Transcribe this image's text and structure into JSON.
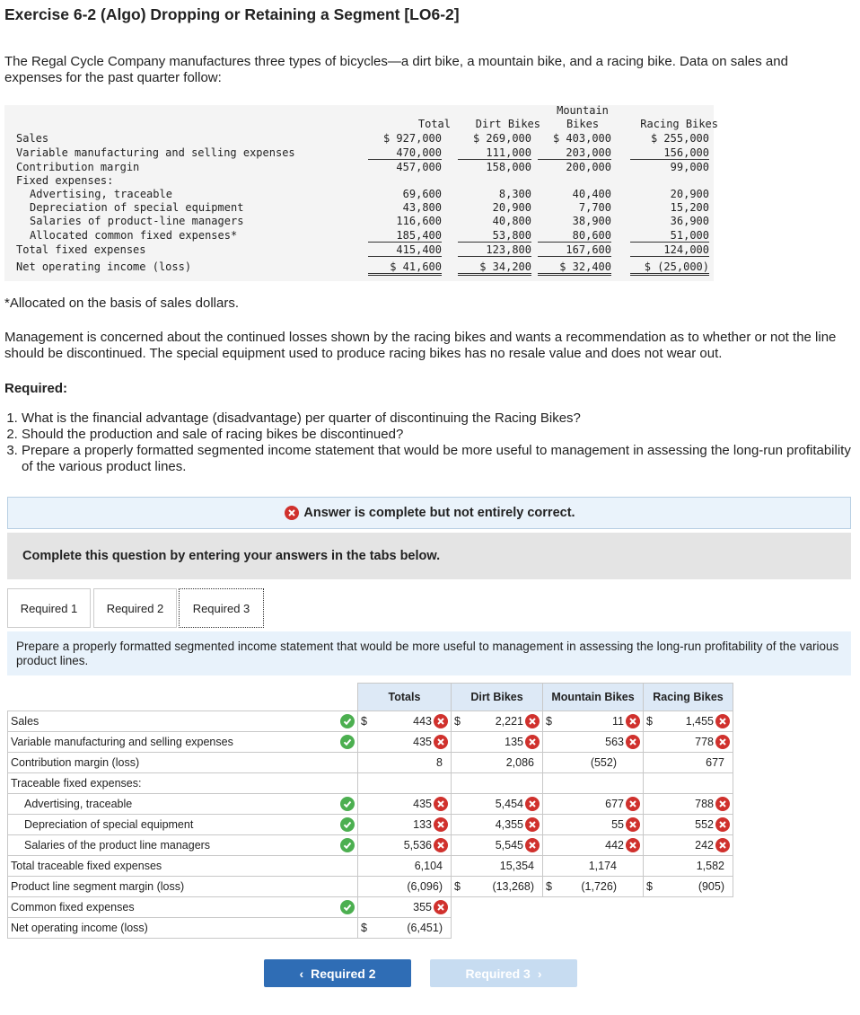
{
  "title": "Exercise 6-2 (Algo) Dropping or Retaining a Segment [LO6-2]",
  "intro": "The Regal Cycle Company manufactures three types of bicycles—a dirt bike, a mountain bike, and a racing bike. Data on sales and expenses for the past quarter follow:",
  "data_table": {
    "headers": [
      "Total",
      "Dirt Bikes",
      "Mountain Bikes",
      "Racing Bikes"
    ],
    "rows": [
      {
        "label": "Sales",
        "values": [
          "$ 927,000",
          "$ 269,000",
          "$ 403,000",
          "$ 255,000"
        ]
      },
      {
        "label": "Variable manufacturing and selling expenses",
        "values": [
          "470,000",
          "111,000",
          "203,000",
          "156,000"
        ]
      },
      {
        "label": "Contribution margin",
        "values": [
          "457,000",
          "158,000",
          "200,000",
          "99,000"
        ]
      },
      {
        "label": "Fixed expenses:",
        "values": []
      },
      {
        "label": "Advertising, traceable",
        "values": [
          "69,600",
          "8,300",
          "40,400",
          "20,900"
        ]
      },
      {
        "label": "Depreciation of special equipment",
        "values": [
          "43,800",
          "20,900",
          "7,700",
          "15,200"
        ]
      },
      {
        "label": "Salaries of product-line managers",
        "values": [
          "116,600",
          "40,800",
          "38,900",
          "36,900"
        ]
      },
      {
        "label": "Allocated common fixed expenses*",
        "values": [
          "185,400",
          "53,800",
          "80,600",
          "51,000"
        ]
      },
      {
        "label": "Total fixed expenses",
        "values": [
          "415,400",
          "123,800",
          "167,600",
          "124,000"
        ]
      },
      {
        "label": "Net operating income (loss)",
        "values": [
          "$ 41,600",
          "$ 34,200",
          "$ 32,400",
          "$ (25,000)"
        ]
      }
    ]
  },
  "footnote": "*Allocated on the basis of sales dollars.",
  "concern": "Management is concerned about the continued losses shown by the racing bikes and wants a recommendation as to whether or not the line should be discontinued. The special equipment used to produce racing bikes has no resale value and does not wear out.",
  "required_heading": "Required:",
  "questions": [
    "What is the financial advantage (disadvantage) per quarter of discontinuing the Racing Bikes?",
    "Should the production and sale of racing bikes be discontinued?",
    "Prepare a properly formatted segmented income statement that would be more useful to management in assessing the long-run profitability of the various product lines."
  ],
  "banner": "Answer is complete but not entirely correct.",
  "instruction": "Complete this question by entering your answers in the tabs below.",
  "tabs": [
    "Required 1",
    "Required 2",
    "Required 3"
  ],
  "prompt": "Prepare a properly formatted segmented income statement that would be more useful to management in assessing the long-run profitability of the various product lines.",
  "answer_table": {
    "headers": [
      "Totals",
      "Dirt Bikes",
      "Mountain Bikes",
      "Racing Bikes"
    ],
    "rows": [
      {
        "label": "Sales",
        "check": true,
        "cells": [
          {
            "dollar": "$",
            "value": "443",
            "wrong": true
          },
          {
            "dollar": "$",
            "value": "2,221",
            "wrong": true
          },
          {
            "dollar": "$",
            "value": "11",
            "wrong": true
          },
          {
            "dollar": "$",
            "value": "1,455",
            "wrong": true
          }
        ]
      },
      {
        "label": "Variable manufacturing and selling expenses",
        "check": true,
        "cells": [
          {
            "value": "435",
            "wrong": true
          },
          {
            "value": "135",
            "wrong": true
          },
          {
            "value": "563",
            "wrong": true
          },
          {
            "value": "778",
            "wrong": true
          }
        ]
      },
      {
        "label": "Contribution margin (loss)",
        "cells": [
          {
            "value": "8"
          },
          {
            "value": "2,086"
          },
          {
            "value": "(552)"
          },
          {
            "value": "677"
          }
        ]
      },
      {
        "label": "Traceable fixed expenses:",
        "cells": []
      },
      {
        "label": "Advertising, traceable",
        "indent": true,
        "check": true,
        "cells": [
          {
            "value": "435",
            "wrong": true
          },
          {
            "value": "5,454",
            "wrong": true
          },
          {
            "value": "677",
            "wrong": true
          },
          {
            "value": "788",
            "wrong": true
          }
        ]
      },
      {
        "label": "Depreciation of special equipment",
        "indent": true,
        "check": true,
        "cells": [
          {
            "value": "133",
            "wrong": true
          },
          {
            "value": "4,355",
            "wrong": true
          },
          {
            "value": "55",
            "wrong": true
          },
          {
            "value": "552",
            "wrong": true
          }
        ]
      },
      {
        "label": "Salaries of the product line managers",
        "indent": true,
        "check": true,
        "cells": [
          {
            "value": "5,536",
            "wrong": true
          },
          {
            "value": "5,545",
            "wrong": true
          },
          {
            "value": "442",
            "wrong": true
          },
          {
            "value": "242",
            "wrong": true
          }
        ]
      },
      {
        "label": "Total traceable fixed expenses",
        "cells": [
          {
            "value": "6,104"
          },
          {
            "value": "15,354"
          },
          {
            "value": "1,174"
          },
          {
            "value": "1,582"
          }
        ]
      },
      {
        "label": "Product line segment margin (loss)",
        "cells": [
          {
            "value": "(6,096)"
          },
          {
            "dollar": "$",
            "value": "(13,268)"
          },
          {
            "dollar": "$",
            "value": "(1,726)"
          },
          {
            "dollar": "$",
            "value": "(905)"
          }
        ]
      },
      {
        "label": "Common fixed expenses",
        "check": true,
        "cells": [
          {
            "value": "355",
            "wrong": true
          }
        ]
      },
      {
        "label": "Net operating income (loss)",
        "cells": [
          {
            "dollar": "$",
            "value": "(6,451)"
          }
        ]
      }
    ]
  },
  "buttons": {
    "previous": "Required 2",
    "next": "Required 3"
  }
}
